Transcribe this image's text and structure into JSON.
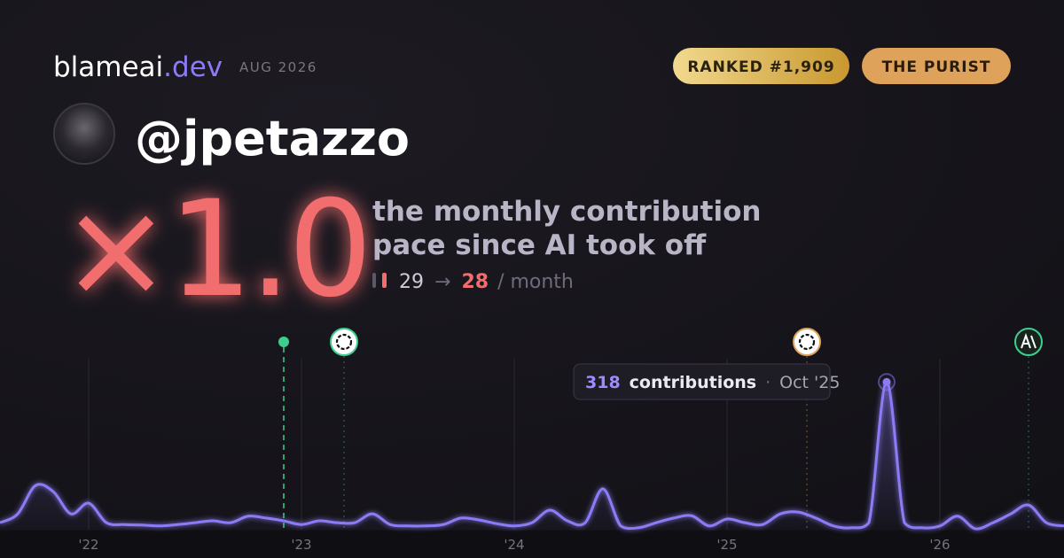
{
  "header": {
    "brand": "blameai",
    "brand_suffix": ".dev",
    "date": "AUG 2026",
    "badges": [
      "RANKED #1,909",
      "THE PURIST"
    ]
  },
  "user": {
    "handle": "@jpetazzo"
  },
  "headline": {
    "multiplier": "×1.0",
    "caption_lines": [
      "the monthly contribution",
      "pace since AI took off"
    ],
    "before": 29,
    "arrow": "→",
    "after": 28,
    "unit": "/ month"
  },
  "chart_data": {
    "type": "line",
    "color": "#8b7cf6",
    "ylim": [
      0,
      330
    ],
    "categories": [
      null,
      null,
      null,
      null,
      null,
      "'22",
      null,
      null,
      null,
      null,
      null,
      null,
      null,
      null,
      null,
      null,
      null,
      "'23",
      null,
      null,
      null,
      null,
      null,
      null,
      null,
      null,
      null,
      null,
      null,
      "'24",
      null,
      null,
      null,
      null,
      null,
      null,
      null,
      null,
      null,
      null,
      null,
      "'25",
      null,
      null,
      null,
      null,
      null,
      null,
      null,
      null,
      null,
      null,
      null,
      "'26",
      null,
      null,
      null,
      null,
      null,
      null,
      null
    ],
    "values": [
      15,
      34,
      95,
      82,
      34,
      57,
      15,
      11,
      10,
      8,
      11,
      15,
      19,
      15,
      29,
      25,
      19,
      11,
      19,
      15,
      15,
      34,
      11,
      8,
      8,
      11,
      25,
      21,
      13,
      8,
      15,
      42,
      19,
      15,
      88,
      8,
      4,
      15,
      25,
      30,
      8,
      23,
      15,
      11,
      34,
      38,
      25,
      8,
      4,
      15,
      318,
      15,
      4,
      8,
      29,
      2,
      15,
      34,
      53,
      15,
      8
    ],
    "tooltip": {
      "index": 50,
      "label": "contributions",
      "separator": "·",
      "period": "Oct '25"
    }
  }
}
